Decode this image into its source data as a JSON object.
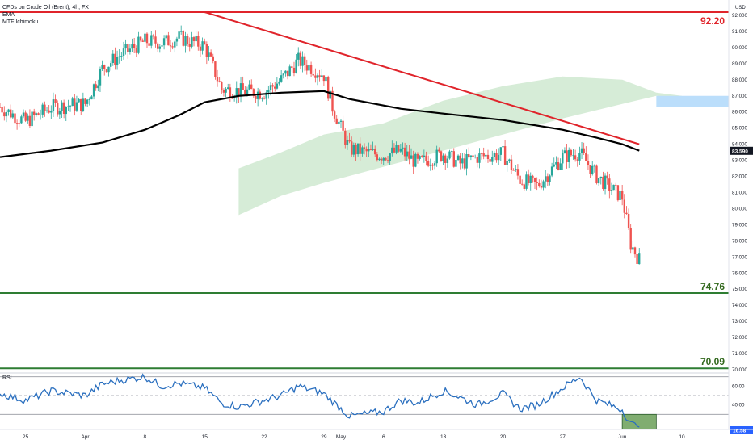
{
  "legend": {
    "symbol": "CFDs on Crude Oil (Brent), 4h, FX",
    "ema": "EMA",
    "ichimoku": "MTF Ichimoku"
  },
  "rsi_panel": {
    "label": "RSI"
  },
  "colors": {
    "up": "#26a69a",
    "down": "#ef5350",
    "resistance": "#e0242b",
    "support": "#2e7d32",
    "ema": "#000000",
    "cloud": "#c8e6c9",
    "cloud_bear": "#bbdefb",
    "rsi": "#2a6fbf"
  },
  "chart_data": [
    {
      "type": "candlestick",
      "title": "CFDs on Crude Oil (Brent), 4h, FX",
      "currency": "USD",
      "y_axis_ticks": [
        "92.000",
        "91.000",
        "90.000",
        "89.000",
        "88.000",
        "87.000",
        "86.000",
        "85.000",
        "84.000",
        "83.000",
        "82.000",
        "81.000",
        "80.000",
        "79.000",
        "78.000",
        "77.000",
        "76.000",
        "75.000",
        "74.000",
        "73.000",
        "72.000",
        "71.000",
        "70.000"
      ],
      "ylim": [
        69.8,
        92.6
      ],
      "x_tick_labels": [
        "25",
        "Apr",
        "8",
        "15",
        "22",
        "29",
        "May",
        "6",
        "13",
        "20",
        "27",
        "Jun",
        "10"
      ],
      "last_price_label": "83.590",
      "horizontal_levels": [
        {
          "value": 92.2,
          "label": "92.20"
        },
        {
          "value": 74.76,
          "label": "74.76"
        },
        {
          "value": 70.09,
          "label": "70.09"
        }
      ],
      "trendline": {
        "from": {
          "date": "Apr 15",
          "price": 92.2
        },
        "to": {
          "date": "Jun 5",
          "price": 84.0
        }
      },
      "close_path": [
        {
          "x": "Mar 22",
          "close": 86.3
        },
        {
          "x": "Mar 25",
          "close": 85.4
        },
        {
          "x": "Mar 28",
          "close": 86.3
        },
        {
          "x": "Apr 1",
          "close": 86.5
        },
        {
          "x": "Apr 3",
          "close": 88.7
        },
        {
          "x": "Apr 5",
          "close": 89.5
        },
        {
          "x": "Apr 8",
          "close": 90.4
        },
        {
          "x": "Apr 10",
          "close": 90.3
        },
        {
          "x": "Apr 12",
          "close": 90.6
        },
        {
          "x": "Apr 15",
          "close": 90.1
        },
        {
          "x": "Apr 17",
          "close": 87.4
        },
        {
          "x": "Apr 19",
          "close": 87.3
        },
        {
          "x": "Apr 22",
          "close": 87.2
        },
        {
          "x": "Apr 24",
          "close": 88.0
        },
        {
          "x": "Apr 26",
          "close": 89.2
        },
        {
          "x": "Apr 29",
          "close": 88.3
        },
        {
          "x": "Apr 30",
          "close": 86.3
        },
        {
          "x": "May 2",
          "close": 83.7
        },
        {
          "x": "May 6",
          "close": 83.3
        },
        {
          "x": "May 8",
          "close": 83.6
        },
        {
          "x": "May 10",
          "close": 82.8
        },
        {
          "x": "May 13",
          "close": 83.4
        },
        {
          "x": "May 15",
          "close": 82.8
        },
        {
          "x": "May 17",
          "close": 83.2
        },
        {
          "x": "May 20",
          "close": 83.4
        },
        {
          "x": "May 22",
          "close": 81.8
        },
        {
          "x": "May 24",
          "close": 81.4
        },
        {
          "x": "May 27",
          "close": 83.2
        },
        {
          "x": "May 29",
          "close": 83.5
        },
        {
          "x": "May 31",
          "close": 82.0
        },
        {
          "x": "Jun 3",
          "close": 80.7
        },
        {
          "x": "Jun 4",
          "close": 77.8
        },
        {
          "x": "Jun 5",
          "close": 76.8
        }
      ],
      "ema_path": [
        {
          "x": "Mar 22",
          "y": 83.2
        },
        {
          "x": "Mar 28",
          "y": 83.6
        },
        {
          "x": "Apr 3",
          "y": 84.1
        },
        {
          "x": "Apr 8",
          "y": 84.9
        },
        {
          "x": "Apr 12",
          "y": 85.8
        },
        {
          "x": "Apr 15",
          "y": 86.6
        },
        {
          "x": "Apr 19",
          "y": 87.0
        },
        {
          "x": "Apr 24",
          "y": 87.2
        },
        {
          "x": "Apr 29",
          "y": 87.3
        },
        {
          "x": "May 2",
          "y": 86.8
        },
        {
          "x": "May 8",
          "y": 86.2
        },
        {
          "x": "May 13",
          "y": 85.9
        },
        {
          "x": "May 20",
          "y": 85.5
        },
        {
          "x": "May 27",
          "y": 84.9
        },
        {
          "x": "May 31",
          "y": 84.4
        },
        {
          "x": "Jun 3",
          "y": 84.0
        },
        {
          "x": "Jun 5",
          "y": 83.6
        }
      ],
      "ichimoku_cloud": {
        "upper": [
          {
            "x": "Apr 19",
            "y": 82.5
          },
          {
            "x": "Apr 24",
            "y": 83.5
          },
          {
            "x": "Apr 29",
            "y": 84.6
          },
          {
            "x": "May 6",
            "y": 85.3
          },
          {
            "x": "May 13",
            "y": 86.7
          },
          {
            "x": "May 20",
            "y": 87.6
          },
          {
            "x": "May 27",
            "y": 88.2
          },
          {
            "x": "Jun 3",
            "y": 88.0
          },
          {
            "x": "Jun 7",
            "y": 87.2
          },
          {
            "x": "Jun 10",
            "y": 87.0
          }
        ],
        "lower": [
          {
            "x": "Apr 19",
            "y": 79.6
          },
          {
            "x": "Apr 24",
            "y": 80.8
          },
          {
            "x": "Apr 29",
            "y": 81.6
          },
          {
            "x": "May 6",
            "y": 82.6
          },
          {
            "x": "May 13",
            "y": 83.6
          },
          {
            "x": "May 20",
            "y": 84.6
          },
          {
            "x": "May 27",
            "y": 85.6
          },
          {
            "x": "Jun 3",
            "y": 86.5
          },
          {
            "x": "Jun 7",
            "y": 87.0
          },
          {
            "x": "Jun 10",
            "y": 86.9
          }
        ],
        "bearish_part": {
          "upper": 87.0,
          "lower": 86.3
        }
      },
      "rsi": {
        "y_axis_ticks": [
          "60.00",
          "40.00"
        ],
        "ylim": [
          14,
          74
        ],
        "overbought": 70,
        "midline": 50,
        "oversold": 30,
        "last_value_label": "16.58",
        "oversold_highlight": {
          "x_from": "Jun 3",
          "x_to": "Jun 7",
          "y_from": 30,
          "y_to": 14
        },
        "path": [
          {
            "x": "Mar 22",
            "y": 52
          },
          {
            "x": "Mar 25",
            "y": 45
          },
          {
            "x": "Mar 28",
            "y": 55
          },
          {
            "x": "Apr 1",
            "y": 50
          },
          {
            "x": "Apr 3",
            "y": 62
          },
          {
            "x": "Apr 5",
            "y": 66
          },
          {
            "x": "Apr 8",
            "y": 70
          },
          {
            "x": "Apr 10",
            "y": 60
          },
          {
            "x": "Apr 12",
            "y": 63
          },
          {
            "x": "Apr 15",
            "y": 58
          },
          {
            "x": "Apr 17",
            "y": 42
          },
          {
            "x": "Apr 19",
            "y": 38
          },
          {
            "x": "Apr 22",
            "y": 45
          },
          {
            "x": "Apr 24",
            "y": 50
          },
          {
            "x": "Apr 26",
            "y": 60
          },
          {
            "x": "Apr 29",
            "y": 52
          },
          {
            "x": "May 2",
            "y": 28
          },
          {
            "x": "May 6",
            "y": 33
          },
          {
            "x": "May 8",
            "y": 45
          },
          {
            "x": "May 10",
            "y": 42
          },
          {
            "x": "May 13",
            "y": 55
          },
          {
            "x": "May 15",
            "y": 48
          },
          {
            "x": "May 17",
            "y": 40
          },
          {
            "x": "May 20",
            "y": 52
          },
          {
            "x": "May 22",
            "y": 36
          },
          {
            "x": "May 24",
            "y": 40
          },
          {
            "x": "May 27",
            "y": 58
          },
          {
            "x": "May 29",
            "y": 70
          },
          {
            "x": "May 31",
            "y": 45
          },
          {
            "x": "Jun 3",
            "y": 35
          },
          {
            "x": "Jun 4",
            "y": 20
          },
          {
            "x": "Jun 5",
            "y": 16.58
          }
        ]
      }
    }
  ]
}
